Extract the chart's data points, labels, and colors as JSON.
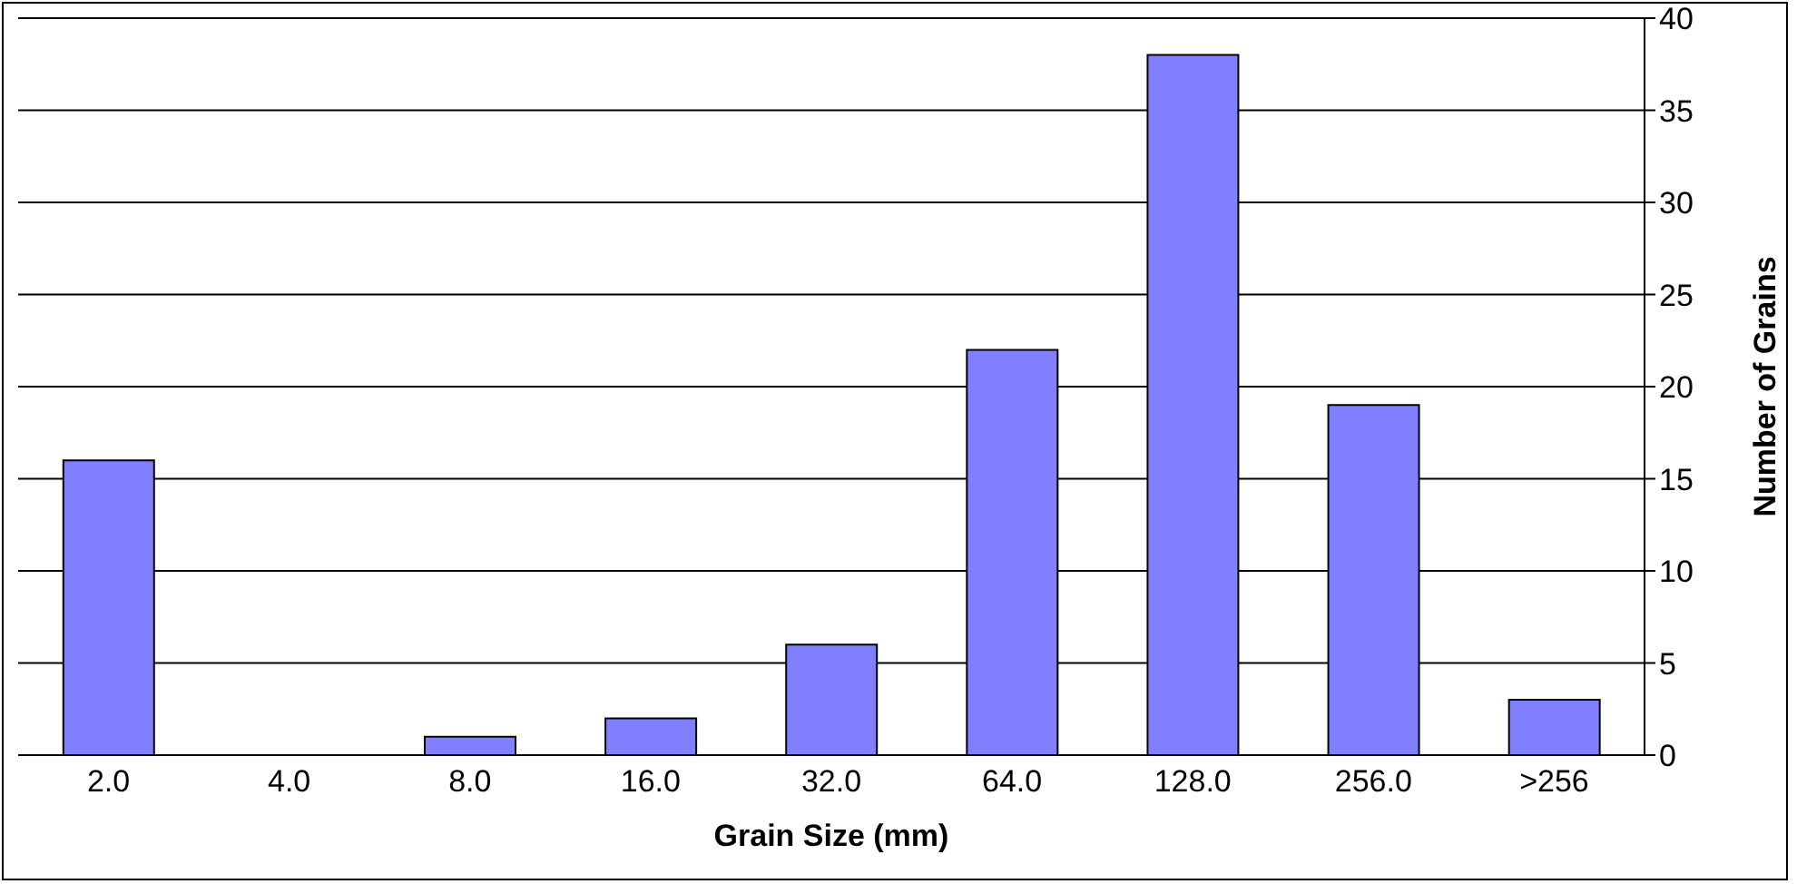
{
  "chart_data": {
    "type": "bar",
    "xlabel": "Grain Size (mm)",
    "ylabel": "Number of Grains",
    "categories": [
      "2.0",
      "4.0",
      "8.0",
      "16.0",
      "32.0",
      "64.0",
      "128.0",
      "256.0",
      ">256"
    ],
    "values": [
      16,
      0,
      1,
      2,
      6,
      22,
      38,
      19,
      3
    ],
    "color": "#8080ff",
    "ylim": [
      0,
      40
    ],
    "yticks": [
      0,
      5,
      10,
      15,
      20,
      25,
      30,
      35,
      40
    ],
    "grid": "y"
  }
}
